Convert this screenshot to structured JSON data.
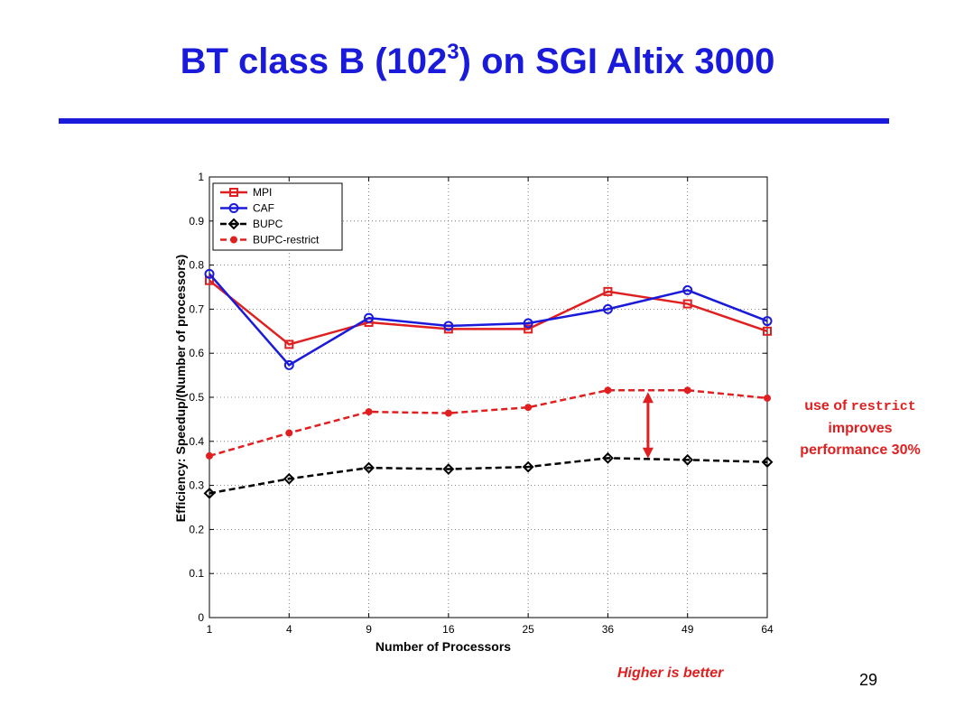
{
  "slide": {
    "title_main": "BT class B (102",
    "title_sup": "3",
    "title_end": ") on SGI Altix 3000",
    "annotation_prefix": "use of ",
    "annotation_code": "restrict",
    "annotation_line2": "improves",
    "annotation_line3": "performance 30%",
    "higher_note": "Higher is better",
    "page_number": "29"
  },
  "colors": {
    "title": "#1a1adb",
    "annotation": "#e02020",
    "MPI": "#e02020",
    "CAF": "#1a1adb",
    "BUPC": "#000000",
    "BUPC-restrict": "#e02020"
  },
  "chart_data": {
    "type": "line",
    "x_scale": "sqrt",
    "title": "",
    "xlabel": "Number of Processors",
    "ylabel": "Efficiency: Speedup/(Number of processors)",
    "x": [
      1,
      4,
      9,
      16,
      25,
      36,
      49,
      64
    ],
    "xticks": [
      "1",
      "4",
      "9",
      "16",
      "25",
      "36",
      "49",
      "64"
    ],
    "yticks": [
      "0",
      "0.1",
      "0.2",
      "0.3",
      "0.4",
      "0.5",
      "0.6",
      "0.7",
      "0.8",
      "0.9",
      "1"
    ],
    "ylim": [
      0,
      1
    ],
    "grid": true,
    "legend_position": "top-left",
    "series": [
      {
        "name": "MPI",
        "marker": "square",
        "dashed": false,
        "values": [
          0.765,
          0.62,
          0.67,
          0.655,
          0.655,
          0.74,
          0.712,
          0.65
        ]
      },
      {
        "name": "CAF",
        "marker": "circle",
        "dashed": false,
        "values": [
          0.78,
          0.573,
          0.68,
          0.662,
          0.668,
          0.7,
          0.743,
          0.673
        ]
      },
      {
        "name": "BUPC",
        "marker": "diamond",
        "dashed": true,
        "values": [
          0.282,
          0.315,
          0.34,
          0.337,
          0.342,
          0.362,
          0.358,
          0.353
        ]
      },
      {
        "name": "BUPC-restrict",
        "marker": "dot",
        "dashed": true,
        "values": [
          0.367,
          0.419,
          0.467,
          0.464,
          0.477,
          0.516,
          0.516,
          0.498
        ]
      }
    ]
  }
}
